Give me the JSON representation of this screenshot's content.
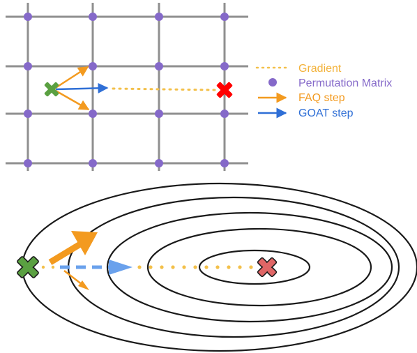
{
  "legend": {
    "gradient": "Gradient",
    "permutation": "Permutation Matrix",
    "faq": "FAQ step",
    "goat": "GOAT step"
  },
  "colors": {
    "grid": "#8f8f8f",
    "node": "#8569c9",
    "gradient": "#f3c04a",
    "faq": "#f39a1f",
    "goat": "#2f6fd6",
    "goat_light": "#6aa1ec",
    "start": "#5aa041",
    "target_top": "#ff0000",
    "target_bottom": "#e06666",
    "contour": "#1a1a1a",
    "gradient_text": "#f3b23a",
    "permutation_text": "#8569c9",
    "faq_text": "#f39a1f",
    "goat_text": "#2f6fd6"
  },
  "icons": {
    "start": "x-mark-icon",
    "target": "x-mark-icon"
  }
}
